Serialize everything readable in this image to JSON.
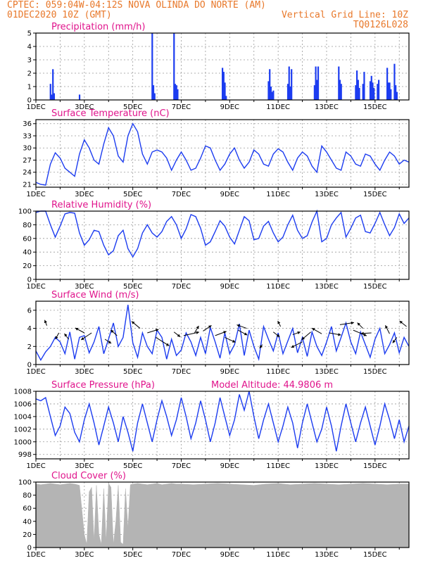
{
  "header": {
    "line1_left": "CPTEC:   059:04W-04:12S  NOVA OLINDA DO NORTE (AM)",
    "line2_left": "01DEC2020 10Z (GMT)",
    "line2_right": "Vertical Grid Line: 10Z",
    "line3_right": "TQ0126L028"
  },
  "colors": {
    "series": "#1c3cf0",
    "cloud": "#b4b4b4",
    "title": "#e0148c",
    "header": "#e8782a"
  },
  "x_axis": {
    "labels": [
      "1DEC",
      "3DEC",
      "5DEC",
      "7DEC",
      "9DEC",
      "11DEC",
      "13DEC",
      "15DEC"
    ],
    "day_start": 1,
    "day_end": 16.4
  },
  "chart_data": [
    {
      "type": "bar",
      "title": "Precipitation (mm/h)",
      "ylim": [
        0,
        5
      ],
      "yticks": [
        "0",
        "1",
        "2",
        "3",
        "4",
        "5"
      ],
      "x_day": [
        1.6,
        1.65,
        1.7,
        1.75,
        2.8,
        5.8,
        5.85,
        5.9,
        6.7,
        6.75,
        6.8,
        6.85,
        8.7,
        8.75,
        8.8,
        8.85,
        10.6,
        10.65,
        10.7,
        10.75,
        10.8,
        11.4,
        11.45,
        11.5,
        11.55,
        12.5,
        12.55,
        12.6,
        12.65,
        13.5,
        13.55,
        13.6,
        14.2,
        14.25,
        14.3,
        14.35,
        14.5,
        14.55,
        14.8,
        14.85,
        14.9,
        14.95,
        15.1,
        15.15,
        15.5,
        15.55,
        15.6,
        15.65,
        15.8,
        15.85,
        15.9
      ],
      "values": [
        1.2,
        0.4,
        2.3,
        0.5,
        0.4,
        5.0,
        1.1,
        0.5,
        5.0,
        1.2,
        1.1,
        0.8,
        2.4,
        2.1,
        1.3,
        0.3,
        1.4,
        2.3,
        1.0,
        0.6,
        0.7,
        1.2,
        2.5,
        1.0,
        2.3,
        1.1,
        2.5,
        1.5,
        2.5,
        2.5,
        1.5,
        1.2,
        1.1,
        2.2,
        1.5,
        0.9,
        1.2,
        2.1,
        1.4,
        1.8,
        1.3,
        0.9,
        1.2,
        1.5,
        2.4,
        1.3,
        1.3,
        0.8,
        2.7,
        1.1,
        0.6
      ]
    },
    {
      "type": "line",
      "title": "Surface Temperature (nC)",
      "ylim": [
        20.3,
        37
      ],
      "yticks": [
        "21",
        "24",
        "27",
        "30",
        "33",
        "36"
      ],
      "x_day": [
        1,
        1.2,
        1.4,
        1.6,
        1.8,
        2.0,
        2.2,
        2.4,
        2.6,
        2.8,
        3.0,
        3.2,
        3.4,
        3.6,
        3.8,
        4.0,
        4.2,
        4.4,
        4.6,
        4.8,
        5.0,
        5.2,
        5.4,
        5.6,
        5.8,
        6.0,
        6.2,
        6.4,
        6.6,
        6.8,
        7.0,
        7.2,
        7.4,
        7.6,
        7.8,
        8.0,
        8.2,
        8.4,
        8.6,
        8.8,
        9.0,
        9.2,
        9.4,
        9.6,
        9.8,
        10.0,
        10.2,
        10.4,
        10.6,
        10.8,
        11.0,
        11.2,
        11.4,
        11.6,
        11.8,
        12.0,
        12.2,
        12.4,
        12.6,
        12.8,
        13.0,
        13.2,
        13.4,
        13.6,
        13.8,
        14.0,
        14.2,
        14.4,
        14.6,
        14.8,
        15.0,
        15.2,
        15.4,
        15.6,
        15.8,
        16.0,
        16.2,
        16.4
      ],
      "values": [
        21.5,
        21.0,
        20.8,
        26.0,
        28.8,
        27.5,
        25.0,
        24.0,
        23.0,
        28.5,
        32.0,
        30.0,
        27.0,
        26.0,
        31.0,
        35.0,
        33.0,
        28.0,
        26.5,
        33.0,
        36.0,
        34.0,
        28.5,
        26.0,
        29.0,
        29.5,
        29.0,
        27.5,
        24.5,
        27.0,
        29.0,
        27.0,
        24.5,
        25.0,
        27.5,
        30.5,
        30.0,
        27.0,
        24.5,
        26.0,
        28.5,
        30.0,
        27.0,
        25.0,
        26.5,
        29.5,
        28.5,
        26.0,
        25.5,
        28.5,
        29.8,
        29.0,
        26.5,
        24.5,
        27.5,
        29.0,
        28.0,
        25.5,
        24.0,
        30.5,
        29.0,
        27.0,
        25.0,
        24.5,
        29.0,
        28.0,
        26.0,
        25.5,
        28.5,
        28.0,
        26.0,
        24.5,
        27.0,
        29.0,
        28.0,
        26.0,
        27.0,
        26.5
      ]
    },
    {
      "type": "line",
      "title": "Relative Humidity (%)",
      "ylim": [
        0,
        100
      ],
      "yticks": [
        "0",
        "20",
        "40",
        "60",
        "80",
        "100"
      ],
      "x_day": [
        1,
        1.2,
        1.4,
        1.6,
        1.8,
        2.0,
        2.2,
        2.4,
        2.6,
        2.8,
        3.0,
        3.2,
        3.4,
        3.6,
        3.8,
        4.0,
        4.2,
        4.4,
        4.6,
        4.8,
        5.0,
        5.2,
        5.4,
        5.6,
        5.8,
        6.0,
        6.2,
        6.4,
        6.6,
        6.8,
        7.0,
        7.2,
        7.4,
        7.6,
        7.8,
        8.0,
        8.2,
        8.4,
        8.6,
        8.8,
        9.0,
        9.2,
        9.4,
        9.6,
        9.8,
        10.0,
        10.2,
        10.4,
        10.6,
        10.8,
        11.0,
        11.2,
        11.4,
        11.6,
        11.8,
        12.0,
        12.2,
        12.4,
        12.6,
        12.8,
        13.0,
        13.2,
        13.4,
        13.6,
        13.8,
        14.0,
        14.2,
        14.4,
        14.6,
        14.8,
        15.0,
        15.2,
        15.4,
        15.6,
        15.8,
        16.0,
        16.2,
        16.4
      ],
      "values": [
        98,
        100,
        100,
        80,
        62,
        78,
        96,
        98,
        97,
        68,
        50,
        58,
        72,
        70,
        50,
        36,
        42,
        64,
        72,
        45,
        33,
        45,
        68,
        80,
        68,
        62,
        70,
        85,
        92,
        80,
        60,
        74,
        95,
        92,
        75,
        50,
        55,
        70,
        86,
        78,
        62,
        52,
        72,
        92,
        86,
        58,
        60,
        78,
        85,
        68,
        55,
        62,
        80,
        94,
        72,
        60,
        64,
        84,
        100,
        55,
        60,
        80,
        90,
        98,
        62,
        75,
        90,
        94,
        70,
        68,
        82,
        98,
        80,
        64,
        76,
        96,
        82,
        90
      ]
    },
    {
      "type": "line",
      "title": "Surface Wind (m/s)",
      "ylim": [
        0,
        7
      ],
      "yticks": [
        "0",
        "2",
        "4",
        "6"
      ],
      "x_day": [
        1,
        1.2,
        1.4,
        1.6,
        1.8,
        2.0,
        2.2,
        2.4,
        2.6,
        2.8,
        3.0,
        3.2,
        3.4,
        3.6,
        3.8,
        4.0,
        4.2,
        4.4,
        4.6,
        4.8,
        5.0,
        5.2,
        5.4,
        5.6,
        5.8,
        6.0,
        6.2,
        6.4,
        6.6,
        6.8,
        7.0,
        7.2,
        7.4,
        7.6,
        7.8,
        8.0,
        8.2,
        8.4,
        8.6,
        8.8,
        9.0,
        9.2,
        9.4,
        9.6,
        9.8,
        10.0,
        10.2,
        10.4,
        10.6,
        10.8,
        11.0,
        11.2,
        11.4,
        11.6,
        11.8,
        12.0,
        12.2,
        12.4,
        12.6,
        12.8,
        13.0,
        13.2,
        13.4,
        13.6,
        13.8,
        14.0,
        14.2,
        14.4,
        14.6,
        14.8,
        15.0,
        15.2,
        15.4,
        15.6,
        15.8,
        16.0,
        16.2,
        16.4
      ],
      "values": [
        1.5,
        0.5,
        1.4,
        2.0,
        3.0,
        2.5,
        1.2,
        3.6,
        0.6,
        3.0,
        3.2,
        1.3,
        2.5,
        4.2,
        1.2,
        2.8,
        4.6,
        2.0,
        3.0,
        6.6,
        2.4,
        0.8,
        3.5,
        2.0,
        1.2,
        3.8,
        3.0,
        0.6,
        2.8,
        1.0,
        1.6,
        3.5,
        2.5,
        1.0,
        3.0,
        1.2,
        4.1,
        2.5,
        0.7,
        3.5,
        1.2,
        2.2,
        4.5,
        1.0,
        3.8,
        2.0,
        0.6,
        4.2,
        2.8,
        1.5,
        3.5,
        1.2,
        2.6,
        4.0,
        1.3,
        3.0,
        0.9,
        3.6,
        2.0,
        1.0,
        2.5,
        4.2,
        1.5,
        3.0,
        4.6,
        2.5,
        1.2,
        3.6,
        2.2,
        0.8,
        2.8,
        4.0,
        1.2,
        2.2,
        3.5,
        1.3,
        3.0,
        2.0
      ],
      "arrows": {
        "x_day": [
          1.45,
          1.95,
          2.35,
          3.0,
          3.3,
          3.85,
          4.35,
          5.3,
          5.6,
          5.95,
          6.7,
          7.1,
          7.55,
          7.9,
          8.4,
          8.8,
          9.35,
          9.7,
          10.35,
          10.8,
          11.1,
          11.6,
          12.0,
          12.35,
          12.8,
          13.1,
          13.55,
          14.1,
          14.5,
          14.85,
          15.6,
          15.9,
          16.3
        ],
        "y": [
          4.3,
          3.5,
          2.8,
          3.5,
          3.5,
          2.8,
          3.2,
          4.0,
          3.5,
          3.0,
          3.6,
          3.2,
          3.5,
          3.7,
          3.2,
          3.0,
          3.8,
          4.0,
          2.2,
          3.6,
          4.2,
          3.3,
          2.5,
          3.6,
          3.4,
          3.5,
          4.4,
          3.8,
          4.0,
          3.5,
          3.4,
          3.0,
          4.2
        ],
        "dx": [
          -3,
          -5,
          -6,
          -13,
          -15,
          9,
          -9,
          -12,
          16,
          19,
          9,
          22,
          6,
          12,
          16,
          15,
          13,
          -14,
          -4,
          9,
          -4,
          11,
          -16,
          -13,
          -14,
          17,
          20,
          19,
          -8,
          -15,
          -6,
          -6,
          -10
        ],
        "dy": [
          -8,
          9,
          -8,
          -7,
          10,
          6,
          -8,
          -10,
          -5,
          12,
          7,
          -5,
          -10,
          -8,
          -6,
          7,
          7,
          -5,
          5,
          7,
          -8,
          -4,
          8,
          11,
          -8,
          3,
          -3,
          8,
          -8,
          1,
          -12,
          8,
          -8
        ]
      }
    },
    {
      "type": "line",
      "title": "Surface Pressure (hPa)",
      "annotation": "Model Altitude: 44.9806 m",
      "ylim": [
        997.3,
        1008
      ],
      "yticks": [
        "998",
        "1000",
        "1002",
        "1004",
        "1006",
        "1008"
      ],
      "x_day": [
        1,
        1.2,
        1.4,
        1.6,
        1.8,
        2.0,
        2.2,
        2.4,
        2.6,
        2.8,
        3.0,
        3.2,
        3.4,
        3.6,
        3.8,
        4.0,
        4.2,
        4.4,
        4.6,
        4.8,
        5.0,
        5.2,
        5.4,
        5.6,
        5.8,
        6.0,
        6.2,
        6.4,
        6.6,
        6.8,
        7.0,
        7.2,
        7.4,
        7.6,
        7.8,
        8.0,
        8.2,
        8.4,
        8.6,
        8.8,
        9.0,
        9.2,
        9.4,
        9.6,
        9.8,
        10.0,
        10.2,
        10.4,
        10.6,
        10.8,
        11.0,
        11.2,
        11.4,
        11.6,
        11.8,
        12.0,
        12.2,
        12.4,
        12.6,
        12.8,
        13.0,
        13.2,
        13.4,
        13.6,
        13.8,
        14.0,
        14.2,
        14.4,
        14.6,
        14.8,
        15.0,
        15.2,
        15.4,
        15.6,
        15.8,
        16.0,
        16.2,
        16.4
      ],
      "values": [
        1006.8,
        1006.5,
        1007.0,
        1004.0,
        1001.0,
        1002.5,
        1005.5,
        1004.5,
        1001.5,
        1000.0,
        1003.5,
        1006.0,
        1003.0,
        999.5,
        1002.5,
        1005.5,
        1003.0,
        1000.0,
        1004.0,
        1001.5,
        998.5,
        1003.0,
        1006.0,
        1003.0,
        1000.0,
        1003.5,
        1006.5,
        1004.0,
        1001.0,
        1003.5,
        1007.0,
        1004.0,
        1000.5,
        1003.0,
        1006.5,
        1003.5,
        1000.0,
        1003.0,
        1007.0,
        1004.0,
        1001.0,
        1003.5,
        1007.5,
        1005.0,
        1008.0,
        1004.0,
        1000.5,
        1003.5,
        1006.0,
        1003.0,
        1000.0,
        1002.5,
        1005.5,
        1003.0,
        999.0,
        1003.0,
        1006.0,
        1003.0,
        1000.0,
        1002.0,
        1005.5,
        1002.5,
        998.5,
        1002.5,
        1006.0,
        1003.0,
        1000.0,
        1003.0,
        1005.5,
        1002.5,
        999.5,
        1002.5,
        1006.0,
        1003.5,
        1000.5,
        1003.5,
        1000.0,
        1002.5
      ]
    },
    {
      "type": "area",
      "title": "Cloud Cover (%)",
      "ylim": [
        0,
        100
      ],
      "yticks": [
        "0",
        "20",
        "40",
        "60",
        "80",
        "100"
      ],
      "x_day": [
        1,
        1.2,
        1.4,
        1.6,
        1.8,
        2.0,
        2.2,
        2.4,
        2.6,
        2.8,
        3.0,
        3.1,
        3.2,
        3.3,
        3.4,
        3.5,
        3.6,
        3.7,
        3.8,
        3.9,
        4.0,
        4.1,
        4.2,
        4.3,
        4.4,
        4.5,
        4.6,
        4.7,
        4.8,
        4.9,
        5.0,
        5.2,
        5.4,
        5.6,
        5.8,
        6.0,
        6.2,
        6.4,
        6.6,
        6.8,
        7.0,
        7.5,
        8.0,
        8.5,
        9.0,
        9.5,
        10.0,
        10.5,
        11.0,
        11.5,
        12.0,
        12.5,
        13.0,
        13.5,
        14.0,
        14.5,
        15.0,
        15.5,
        16.0,
        16.4
      ],
      "values": [
        97,
        96,
        97,
        98,
        97,
        96,
        97,
        98,
        97,
        95,
        20,
        5,
        85,
        92,
        10,
        95,
        20,
        5,
        90,
        10,
        98,
        92,
        5,
        40,
        95,
        8,
        5,
        90,
        30,
        96,
        97,
        98,
        97,
        96,
        97,
        98,
        96,
        97,
        98,
        97,
        97,
        96,
        97,
        98,
        97,
        96,
        95,
        97,
        98,
        96,
        97,
        98,
        97,
        96,
        97,
        98,
        97,
        96,
        97,
        97
      ]
    }
  ]
}
